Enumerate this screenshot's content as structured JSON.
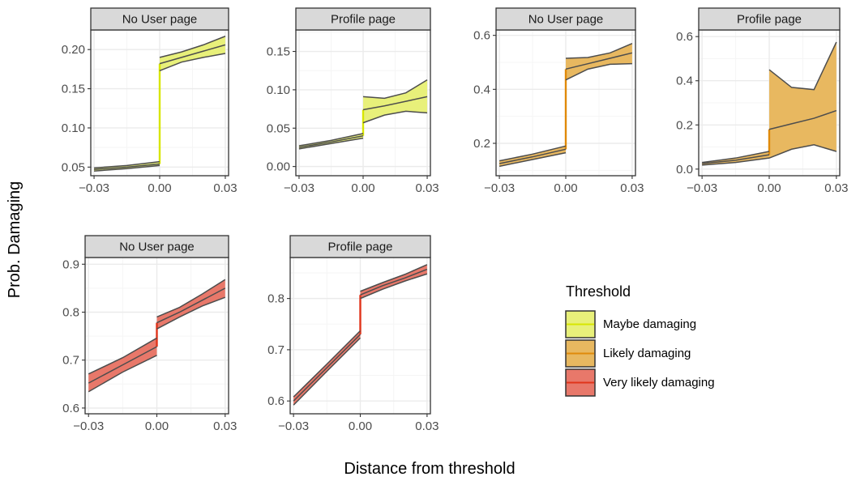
{
  "axis_titles": {
    "x": "Distance from threshold",
    "y": "Prob. Damaging"
  },
  "legend": {
    "title": "Threshold",
    "items": [
      {
        "label": "Maybe damaging",
        "color": "#d8e600",
        "fill": "#e8f07a"
      },
      {
        "label": "Likely damaging",
        "color": "#e08a0a",
        "fill": "#e8b860"
      },
      {
        "label": "Very likely damaging",
        "color": "#e0341a",
        "fill": "#e8786a"
      }
    ]
  },
  "colors": {
    "panel_border": "#333333",
    "strip_fill": "#d9d9d9",
    "grid_major": "#ebebeb",
    "grid_minor": "#f5f5f5",
    "band_line": "#4d4d4d"
  },
  "chart_data": [
    {
      "type": "line",
      "strip": "No User page",
      "threshold": "Maybe damaging",
      "xlim": [
        -0.0315,
        0.0315
      ],
      "ylim": [
        0.039,
        0.225
      ],
      "xticks": [
        -0.03,
        0,
        0.03
      ],
      "xtick_labels": [
        "−0.03",
        "0.00",
        "0.03"
      ],
      "yticks": [
        0.05,
        0.1,
        0.15,
        0.2
      ],
      "ytick_labels": [
        "0.05",
        "0.10",
        "0.15",
        "0.20"
      ],
      "left": {
        "x": [
          -0.03,
          -0.015,
          0
        ],
        "center": [
          0.047,
          0.05,
          0.054
        ],
        "upper": [
          0.049,
          0.052,
          0.057
        ],
        "lower": [
          0.045,
          0.048,
          0.052
        ]
      },
      "right": {
        "x": [
          0,
          0.01,
          0.02,
          0.03
        ],
        "center": [
          0.182,
          0.19,
          0.198,
          0.206
        ],
        "upper": [
          0.19,
          0.197,
          0.206,
          0.217
        ],
        "lower": [
          0.173,
          0.184,
          0.19,
          0.195
        ]
      }
    },
    {
      "type": "line",
      "strip": "Profile page",
      "threshold": "Maybe damaging",
      "xlim": [
        -0.0315,
        0.0315
      ],
      "ylim": [
        -0.012,
        0.178
      ],
      "xticks": [
        -0.03,
        0,
        0.03
      ],
      "xtick_labels": [
        "−0.03",
        "0.00",
        "0.03"
      ],
      "yticks": [
        0,
        0.05,
        0.1,
        0.15
      ],
      "ytick_labels": [
        "0.00",
        "0.05",
        "0.10",
        "0.15"
      ],
      "left": {
        "x": [
          -0.03,
          -0.015,
          0
        ],
        "center": [
          0.025,
          0.032,
          0.04
        ],
        "upper": [
          0.027,
          0.034,
          0.043
        ],
        "lower": [
          0.023,
          0.03,
          0.037
        ]
      },
      "right": {
        "x": [
          0,
          0.01,
          0.02,
          0.03
        ],
        "center": [
          0.074,
          0.079,
          0.085,
          0.091
        ],
        "upper": [
          0.091,
          0.089,
          0.096,
          0.113
        ],
        "lower": [
          0.057,
          0.067,
          0.072,
          0.07
        ]
      }
    },
    {
      "type": "line",
      "strip": "No User page",
      "threshold": "Likely damaging",
      "xlim": [
        -0.0315,
        0.0315
      ],
      "ylim": [
        0.08,
        0.62
      ],
      "xticks": [
        -0.03,
        0,
        0.03
      ],
      "xtick_labels": [
        "−0.03",
        "0.00",
        "0.03"
      ],
      "yticks": [
        0.2,
        0.4,
        0.6
      ],
      "ytick_labels": [
        "0.2",
        "0.4",
        "0.6"
      ],
      "left": {
        "x": [
          -0.03,
          -0.015,
          0
        ],
        "center": [
          0.125,
          0.15,
          0.178
        ],
        "upper": [
          0.135,
          0.16,
          0.19
        ],
        "lower": [
          0.115,
          0.14,
          0.165
        ]
      },
      "right": {
        "x": [
          0,
          0.01,
          0.02,
          0.03
        ],
        "center": [
          0.475,
          0.495,
          0.515,
          0.535
        ],
        "upper": [
          0.515,
          0.518,
          0.535,
          0.57
        ],
        "lower": [
          0.435,
          0.475,
          0.493,
          0.495
        ]
      }
    },
    {
      "type": "line",
      "strip": "Profile page",
      "threshold": "Likely damaging",
      "xlim": [
        -0.0315,
        0.0315
      ],
      "ylim": [
        -0.03,
        0.63
      ],
      "xticks": [
        -0.03,
        0,
        0.03
      ],
      "xtick_labels": [
        "−0.03",
        "0.00",
        "0.03"
      ],
      "yticks": [
        0,
        0.2,
        0.4,
        0.6
      ],
      "ytick_labels": [
        "0.0",
        "0.2",
        "0.4",
        "0.6"
      ],
      "left": {
        "x": [
          -0.03,
          -0.015,
          0
        ],
        "center": [
          0.025,
          0.04,
          0.065
        ],
        "upper": [
          0.03,
          0.05,
          0.08
        ],
        "lower": [
          0.018,
          0.03,
          0.05
        ]
      },
      "right": {
        "x": [
          0,
          0.01,
          0.02,
          0.03
        ],
        "center": [
          0.18,
          0.205,
          0.23,
          0.265
        ],
        "upper": [
          0.45,
          0.37,
          0.36,
          0.575
        ],
        "lower": [
          0.05,
          0.09,
          0.11,
          0.08
        ]
      }
    },
    {
      "type": "line",
      "strip": "No User page",
      "threshold": "Very likely damaging",
      "xlim": [
        -0.0315,
        0.0315
      ],
      "ylim": [
        0.588,
        0.914
      ],
      "xticks": [
        -0.03,
        0,
        0.03
      ],
      "xtick_labels": [
        "−0.03",
        "0.00",
        "0.03"
      ],
      "yticks": [
        0.6,
        0.7,
        0.8,
        0.9
      ],
      "ytick_labels": [
        "0.6",
        "0.7",
        "0.8",
        "0.9"
      ],
      "left": {
        "x": [
          -0.03,
          -0.015,
          0
        ],
        "center": [
          0.652,
          0.69,
          0.728
        ],
        "upper": [
          0.671,
          0.705,
          0.746
        ],
        "lower": [
          0.634,
          0.675,
          0.71
        ]
      },
      "right": {
        "x": [
          0,
          0.01,
          0.02,
          0.03
        ],
        "center": [
          0.778,
          0.8,
          0.825,
          0.85
        ],
        "upper": [
          0.79,
          0.81,
          0.838,
          0.868
        ],
        "lower": [
          0.765,
          0.79,
          0.813,
          0.831
        ]
      }
    },
    {
      "type": "line",
      "strip": "Profile page",
      "threshold": "Very likely damaging",
      "xlim": [
        -0.0315,
        0.0315
      ],
      "ylim": [
        0.575,
        0.88
      ],
      "xticks": [
        -0.03,
        0,
        0.03
      ],
      "xtick_labels": [
        "−0.03",
        "0.00",
        "0.03"
      ],
      "yticks": [
        0.6,
        0.7,
        0.8
      ],
      "ytick_labels": [
        "0.6",
        "0.7",
        "0.8"
      ],
      "left": {
        "x": [
          -0.03,
          -0.015,
          0
        ],
        "center": [
          0.6,
          0.665,
          0.73
        ],
        "upper": [
          0.608,
          0.672,
          0.737
        ],
        "lower": [
          0.592,
          0.658,
          0.723
        ]
      },
      "right": {
        "x": [
          0,
          0.01,
          0.02,
          0.03
        ],
        "center": [
          0.807,
          0.825,
          0.84,
          0.857
        ],
        "upper": [
          0.814,
          0.831,
          0.847,
          0.866
        ],
        "lower": [
          0.8,
          0.818,
          0.834,
          0.848
        ]
      }
    }
  ]
}
